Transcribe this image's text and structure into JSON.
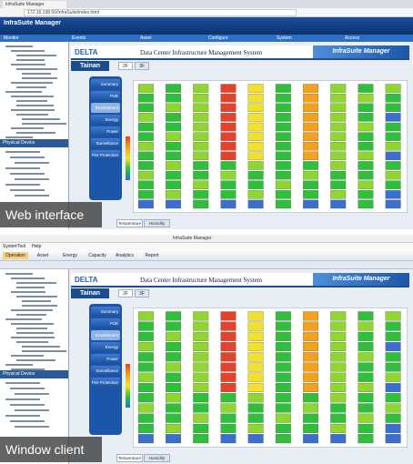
{
  "panels": [
    {
      "caption": "Web interface",
      "browser_tab": "InfraSuite Manager",
      "address": "172.16.198.56/InfraSuite/index.html",
      "app_title": "InfraSuite Manager",
      "menu": [
        "Monitor",
        "Events",
        "Asset",
        "Configure",
        "System",
        "Access"
      ],
      "section_title": "Physical Device",
      "brand": "DELTA",
      "site": "Tainan",
      "system_title": "Data Center Infrastructure Management System",
      "product": "InfraSuite Manager",
      "floors": [
        "2F",
        "3F"
      ],
      "nav": [
        "Summary",
        "PUE",
        "Environment",
        "Energy",
        "Power",
        "Surveillance",
        "Fire Protection"
      ],
      "bottom_tabs": [
        "Temperature",
        "Humidity"
      ]
    },
    {
      "caption": "Window client",
      "app_title": "InfraSuite Manager",
      "menu": [
        "System",
        "Tool",
        "Help"
      ],
      "ribbon": [
        "Operation",
        "Asset",
        "Energy",
        "Capacity",
        "Analytics",
        "Report"
      ],
      "section_title": "Physical Device",
      "brand": "DELTA",
      "site": "Tainan",
      "system_title": "Data Center Infrastructure Management System",
      "product": "InfraSuite Manager",
      "floors": [
        "2F",
        "3F"
      ],
      "nav": [
        "Summary",
        "PUE",
        "Environment",
        "Energy",
        "Power",
        "Surveillance",
        "Fire Protection"
      ],
      "bottom_tabs": [
        "Temperature",
        "Humidity"
      ]
    }
  ]
}
